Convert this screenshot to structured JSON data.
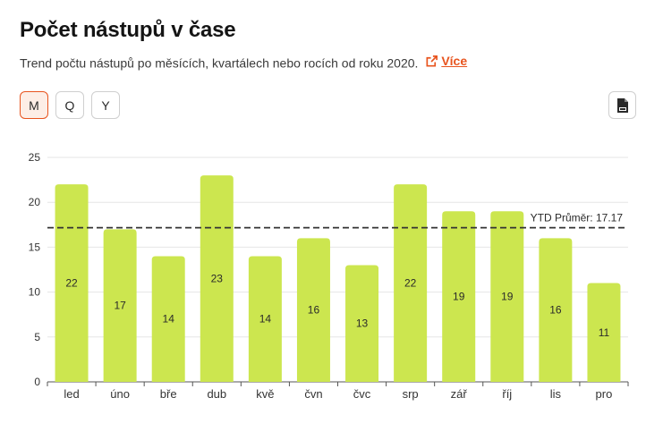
{
  "header": {
    "title": "Počet nástupů v čase",
    "subtitle": "Trend počtu nástupů po měsících, kvartálech nebo rocích od roku 2020.",
    "more_link": "Více"
  },
  "period_toggle": [
    {
      "label": "M",
      "active": true
    },
    {
      "label": "Q",
      "active": false
    },
    {
      "label": "Y",
      "active": false
    }
  ],
  "export_icon": "jpg-file-icon",
  "colors": {
    "accent": "#e8541e",
    "bar": "#cce64f",
    "average_line": "#333333"
  },
  "chart_data": {
    "type": "bar",
    "categories": [
      "led",
      "úno",
      "bře",
      "dub",
      "kvě",
      "čvn",
      "čvc",
      "srp",
      "zář",
      "říj",
      "lis",
      "pro"
    ],
    "values": [
      22,
      17,
      14,
      23,
      14,
      16,
      13,
      22,
      19,
      19,
      16,
      11
    ],
    "ylim": [
      0,
      25
    ],
    "yticks": [
      0,
      5,
      10,
      15,
      20,
      25
    ],
    "grid": true,
    "average": {
      "value": 17.17,
      "label": "YTD Průměr: 17.17"
    }
  }
}
